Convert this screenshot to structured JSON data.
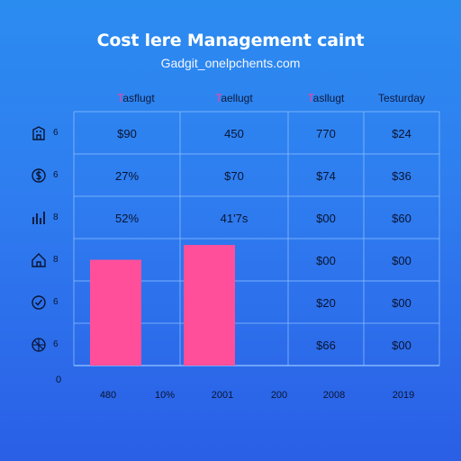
{
  "chart_data": {
    "type": "table",
    "title": "Cost lere Management caint",
    "subtitle": "Gadgit_onelpchents.com",
    "column_headers": [
      {
        "accent": "T",
        "rest": "asflugt"
      },
      {
        "accent": "T",
        "rest": "aellugt"
      },
      {
        "accent": "T",
        "rest": "asllugt"
      },
      {
        "accent": "",
        "rest": "Testurday"
      }
    ],
    "row_numbers": [
      "6",
      "6",
      "8",
      "8",
      "6",
      "6"
    ],
    "zero_label": "0",
    "rows": [
      [
        "$90",
        "450",
        "770",
        "$24"
      ],
      [
        "27%",
        "$70",
        "$74",
        "$36"
      ],
      [
        "52%",
        "41'7s",
        "$00",
        "$60"
      ],
      [
        "",
        "",
        "$00",
        "$00"
      ],
      [
        "",
        "",
        "$20",
        "$00"
      ],
      [
        "",
        "",
        "$66",
        "$00"
      ]
    ],
    "bars": [
      {
        "column": 0,
        "top_row": 3.5
      },
      {
        "column": 1,
        "top_row": 3.15
      }
    ],
    "x_ticks": [
      "480",
      "10%",
      "2001",
      "200",
      "2008",
      "2019"
    ],
    "colors": {
      "bar": "#ff4f9a",
      "grid": "#8fc0ff",
      "header_accent": "#ff3fa0",
      "text": "#0a1430"
    }
  },
  "row_icons": [
    "building-icon",
    "dollar-icon",
    "chart-icon",
    "home-icon",
    "check-icon",
    "network-icon"
  ]
}
